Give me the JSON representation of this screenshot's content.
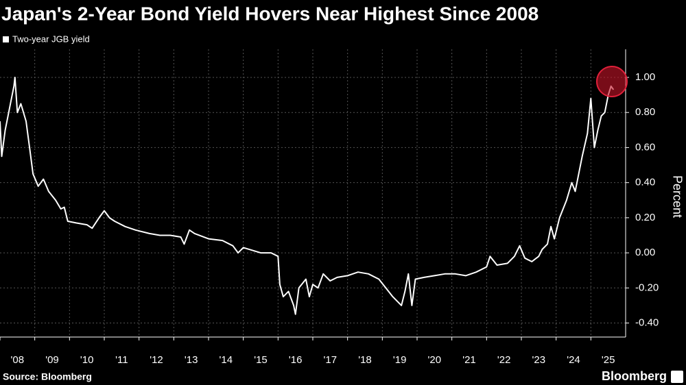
{
  "chart_data": {
    "type": "line",
    "title": "Japan's 2-Year Bond Yield Hovers Near Highest Since 2008",
    "y_label": "Percent",
    "source": "Source: Bloomberg",
    "logo": "Bloomberg",
    "grid": true,
    "legend": "top-left",
    "xlim": [
      2008,
      2026
    ],
    "ylim": [
      -0.48,
      1.16
    ],
    "xticks": [
      {
        "value": 2008,
        "label": "'08"
      },
      {
        "value": 2009,
        "label": "'09"
      },
      {
        "value": 2010,
        "label": "'10"
      },
      {
        "value": 2011,
        "label": "'11"
      },
      {
        "value": 2012,
        "label": "'12"
      },
      {
        "value": 2013,
        "label": "'13"
      },
      {
        "value": 2014,
        "label": "'14"
      },
      {
        "value": 2015,
        "label": "'15"
      },
      {
        "value": 2016,
        "label": "'16"
      },
      {
        "value": 2017,
        "label": "'17"
      },
      {
        "value": 2018,
        "label": "'18"
      },
      {
        "value": 2019,
        "label": "'19"
      },
      {
        "value": 2020,
        "label": "'20"
      },
      {
        "value": 2021,
        "label": "'21"
      },
      {
        "value": 2022,
        "label": "'22"
      },
      {
        "value": 2023,
        "label": "'23"
      },
      {
        "value": 2024,
        "label": "'24"
      },
      {
        "value": 2025,
        "label": "'25"
      }
    ],
    "yticks": [
      {
        "value": -0.4,
        "label": "-0.40"
      },
      {
        "value": -0.2,
        "label": "-0.20"
      },
      {
        "value": 0,
        "label": "0.00"
      },
      {
        "value": 0.2,
        "label": "0.20"
      },
      {
        "value": 0.4,
        "label": "0.40"
      },
      {
        "value": 0.6,
        "label": "0.60"
      },
      {
        "value": 0.8,
        "label": "0.80"
      },
      {
        "value": 1.0,
        "label": "1.00"
      }
    ],
    "x": [
      2008.0,
      2008.05,
      2008.15,
      2008.3,
      2008.4,
      2008.43,
      2008.5,
      2008.6,
      2008.75,
      2008.85,
      2008.95,
      2009.1,
      2009.25,
      2009.4,
      2009.6,
      2009.75,
      2009.85,
      2009.95,
      2010.2,
      2010.5,
      2010.65,
      2010.85,
      2011.0,
      2011.15,
      2011.3,
      2011.6,
      2011.9,
      2012.3,
      2012.6,
      2012.9,
      2013.2,
      2013.3,
      2013.45,
      2013.6,
      2014.0,
      2014.4,
      2014.7,
      2014.85,
      2015.0,
      2015.5,
      2015.8,
      2016.0,
      2016.05,
      2016.15,
      2016.3,
      2016.45,
      2016.5,
      2016.6,
      2016.8,
      2016.9,
      2017.0,
      2017.15,
      2017.3,
      2017.5,
      2017.7,
      2018.0,
      2018.3,
      2018.6,
      2018.9,
      2019.1,
      2019.3,
      2019.55,
      2019.65,
      2019.75,
      2019.85,
      2019.95,
      2020.2,
      2020.5,
      2020.8,
      2021.1,
      2021.4,
      2021.7,
      2022.0,
      2022.1,
      2022.3,
      2022.6,
      2022.8,
      2022.95,
      2023.1,
      2023.3,
      2023.5,
      2023.6,
      2023.75,
      2023.85,
      2023.95,
      2024.1,
      2024.3,
      2024.45,
      2024.55,
      2024.65,
      2024.75,
      2024.9,
      2025.0,
      2025.1,
      2025.2,
      2025.3,
      2025.4,
      2025.5,
      2025.58,
      2025.65
    ],
    "series": [
      {
        "name": "Two-year JGB yield",
        "color": "#ffffff",
        "values": [
          0.75,
          0.55,
          0.7,
          0.85,
          0.95,
          1.0,
          0.8,
          0.85,
          0.75,
          0.6,
          0.45,
          0.38,
          0.42,
          0.35,
          0.3,
          0.25,
          0.26,
          0.18,
          0.17,
          0.16,
          0.14,
          0.2,
          0.24,
          0.2,
          0.18,
          0.15,
          0.13,
          0.11,
          0.1,
          0.1,
          0.09,
          0.05,
          0.13,
          0.11,
          0.08,
          0.07,
          0.04,
          0.0,
          0.03,
          0.0,
          0.0,
          -0.02,
          -0.18,
          -0.25,
          -0.22,
          -0.3,
          -0.35,
          -0.2,
          -0.15,
          -0.25,
          -0.18,
          -0.2,
          -0.12,
          -0.16,
          -0.14,
          -0.13,
          -0.11,
          -0.12,
          -0.15,
          -0.2,
          -0.25,
          -0.3,
          -0.22,
          -0.12,
          -0.3,
          -0.15,
          -0.14,
          -0.13,
          -0.12,
          -0.12,
          -0.13,
          -0.11,
          -0.08,
          -0.02,
          -0.07,
          -0.06,
          -0.02,
          0.04,
          -0.03,
          -0.05,
          -0.02,
          0.02,
          0.05,
          0.15,
          0.08,
          0.2,
          0.3,
          0.4,
          0.35,
          0.45,
          0.55,
          0.68,
          0.88,
          0.6,
          0.7,
          0.78,
          0.8,
          0.9,
          0.95,
          0.93
        ]
      }
    ]
  }
}
